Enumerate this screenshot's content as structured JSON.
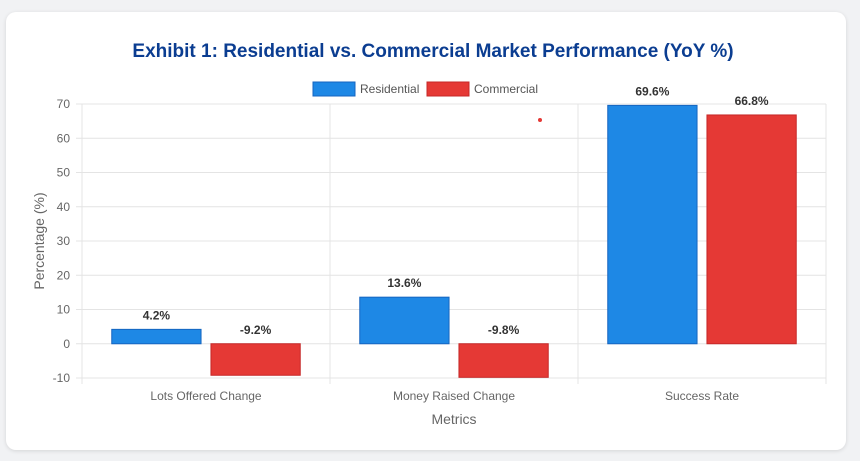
{
  "chart_data": {
    "type": "bar",
    "title": "Exhibit 1: Residential vs. Commercial Market Performance (YoY %)",
    "categories": [
      "Lots Offered Change",
      "Money Raised Change",
      "Success Rate"
    ],
    "series": [
      {
        "name": "Residential",
        "values": [
          4.2,
          13.6,
          69.6
        ],
        "color": "#1e88e5",
        "border": "#1565c0"
      },
      {
        "name": "Commercial",
        "values": [
          -9.2,
          -9.8,
          66.8
        ],
        "color": "#e53935",
        "border": "#c62828"
      }
    ],
    "data_labels": [
      [
        "4.2%",
        "13.6%",
        "69.6%"
      ],
      [
        "-9.2%",
        "-9.8%",
        "66.8%"
      ]
    ],
    "xlabel": "Metrics",
    "ylabel": "Percentage (%)",
    "ylim": [
      -10,
      70
    ],
    "yticks": [
      70,
      60,
      50,
      40,
      30,
      20,
      10,
      0,
      -10
    ],
    "legend_position": "top",
    "grid": true
  }
}
